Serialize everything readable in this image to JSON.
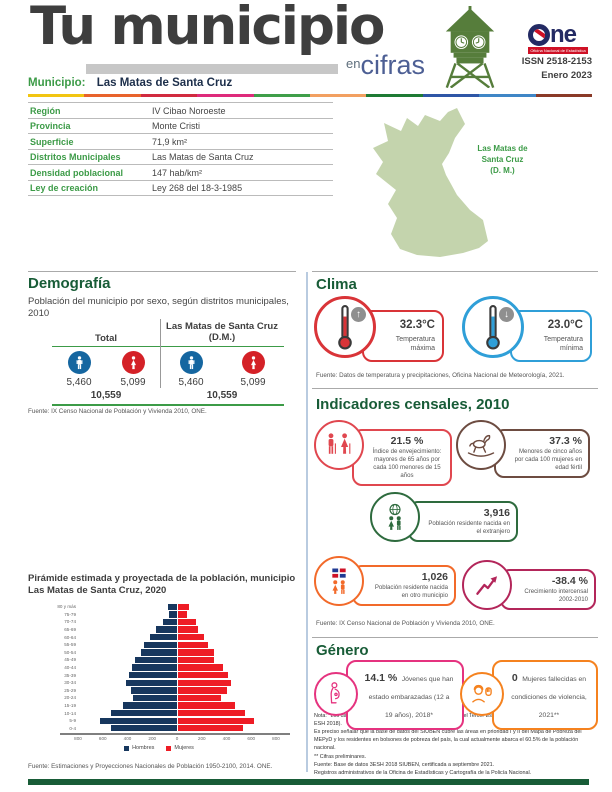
{
  "header": {
    "title": "Tu municipio",
    "subtitle_en": "en",
    "subtitle_cifras": "cifras",
    "issn": "ISSN  2518-2153",
    "date": "Enero 2023",
    "one_logo_o": "O",
    "one_logo_ne": "ne",
    "one_logo_caption": "Oficina Nacional de Estadística",
    "divider_colors": [
      "#f2c511",
      "#e8632c",
      "#d12a3f",
      "#de2a7b",
      "#3f9e49",
      "#f2a061",
      "#1e7a34",
      "#2e56a6",
      "#3f86c6",
      "#8a3a28"
    ]
  },
  "municipio": {
    "label": "Municipio:",
    "name": "Las Matas de Santa Cruz"
  },
  "info_table": {
    "rows": [
      {
        "label": "Región",
        "value": "IV Cibao Noroeste"
      },
      {
        "label": "Provincia",
        "value": "Monte Cristi"
      },
      {
        "label": "Superficie",
        "value": "71,9 km²"
      },
      {
        "label": "Distritos Municipales",
        "value": "Las Matas de Santa Cruz"
      },
      {
        "label": "Densidad poblacional",
        "value": "147 hab/km²"
      },
      {
        "label": "Ley de creación",
        "value": "Ley 268 del 18-3-1985"
      }
    ]
  },
  "map": {
    "fill_color": "#c4d4ad",
    "label_lines": [
      "Las Matas de",
      "Santa Cruz",
      "(D. M.)"
    ]
  },
  "demografia": {
    "title": "Demografía",
    "subtitle": "Población del municipio por sexo, según distritos municipales, 2010",
    "groups": [
      {
        "name": "Total",
        "male": "5,460",
        "female": "5,099",
        "total": "10,559"
      },
      {
        "name": "Las Matas de Santa Cruz (D.M.)",
        "male": "5,460",
        "female": "5,099",
        "total": "10,559"
      }
    ],
    "male_color": "#1566a0",
    "female_color": "#d42127",
    "source": "Fuente: IX Censo Nacional de Población y Vivienda 2010, ONE."
  },
  "clima": {
    "title": "Clima",
    "items": [
      {
        "value": "32.3°C",
        "label": "Temperatura máxima",
        "direction": "up",
        "color": "#d93438"
      },
      {
        "value": "23.0°C",
        "label": "Temperatura mínima",
        "direction": "down",
        "color": "#2f9fd8"
      }
    ],
    "arrows": {
      "up": "↑",
      "down": "↓"
    },
    "source": "Fuente: Datos de temperatura y precipitaciones, Oficina Nacional de Meteorología, 2021."
  },
  "indicadores": {
    "title": "Indicadores censales, 2010",
    "items": [
      {
        "icon": "elderly-couple-icon",
        "color": "#e0474f",
        "value": "21.5 %",
        "label": "Índice de envejecimiento: mayores de 65 años por cada 100 menores de 15 años"
      },
      {
        "icon": "rocking-horse-icon",
        "color": "#6d4c41",
        "value": "37.3 %",
        "label": "Menores de cinco años por cada 100 mujeres en edad fértil"
      },
      {
        "icon": "globe-people-icon",
        "color": "#2e6b3e",
        "value": "3,916",
        "label": "Población residente nacida en el extranjero"
      },
      {
        "icon": "flag-people-icon",
        "color": "#f26a2a",
        "value": "1,026",
        "label": "Población residente nacida en otro municipio"
      },
      {
        "icon": "trend-arrow-icon",
        "color": "#b3265a",
        "value": "-38.4 %",
        "label": "Crecimiento intercensal 2002-2010"
      }
    ],
    "source": "Fuente: IX Censo Nacional de Población y Vivienda 2010, ONE."
  },
  "genero": {
    "title": "Género",
    "items": [
      {
        "icon": "pregnant-woman-icon",
        "color": "#e5337f",
        "value": "14.1 %",
        "label": "Jóvenes que han estado embarazadas (12 a 19 años), 2018*"
      },
      {
        "icon": "violence-against-women-icon",
        "color": "#f5821f",
        "value": "0",
        "label": "Mujeres fallecidas en condiciones de violencia, 2021**"
      }
    ],
    "notes": [
      "Nota: *Los datos contemplan a los hogares empadronados en el Tercer Estudio Socioeconómico de Hogares 2018 (3-ESH 2018).",
      "Es preciso señalar que la base de datos del SIUBEN cubre las áreas en prioridad I y II del Mapa de Pobreza del MEPyD y los residentes en bolsones de pobreza del país, la cual actualmente abarca el 60.5% de la población nacional.",
      "** Cifras preliminares.",
      "Fuente: Base de datos 3ESH 2018 SIUBEN, certificada a septiembre 2021.",
      "Registros administrativos de la Oficina de Estadísticas y Cartografía de la Policía Nacional."
    ]
  },
  "chart_data": {
    "type": "bar",
    "variant": "population-pyramid",
    "title": "Pirámide estimada y proyectada de la población, municipio Las Matas de Santa Cruz, 2020",
    "categories": [
      "80 y más",
      "75-79",
      "70-74",
      "65-69",
      "60-64",
      "55-59",
      "50-54",
      "45-49",
      "40-44",
      "35-39",
      "30-34",
      "25-29",
      "20-24",
      "15-19",
      "10-14",
      "5-9",
      "0-4"
    ],
    "series": [
      {
        "name": "Hombres",
        "color": "#17375e",
        "values": [
          70,
          65,
          110,
          170,
          215,
          265,
          295,
          340,
          360,
          385,
          410,
          370,
          355,
          435,
          535,
          620,
          530
        ]
      },
      {
        "name": "Mujeres",
        "color": "#ee1c25",
        "values": [
          100,
          80,
          150,
          170,
          220,
          250,
          295,
          300,
          375,
          415,
          440,
          400,
          355,
          465,
          550,
          620,
          535
        ]
      }
    ],
    "xlim": [
      -800,
      800
    ],
    "xtick_labels": [
      "800",
      "600",
      "400",
      "200",
      "0",
      "200",
      "400",
      "600",
      "800"
    ],
    "grid": false,
    "legend_position": "bottom",
    "source": "Fuente: Estimaciones y Proyecciones Nacionales de Población 1950-2100, 2014. ONE."
  }
}
